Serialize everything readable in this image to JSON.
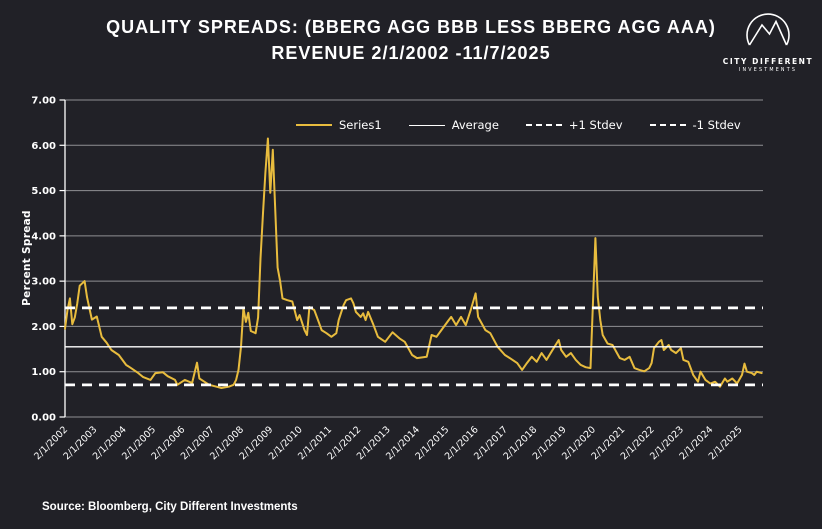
{
  "page": {
    "background": "#212127",
    "accent_yellow": "#E8BC3E",
    "text_color": "#FFFFFF"
  },
  "header": {
    "title_line1": "QUALITY SPREADS: (BBERG AGG BBB LESS BBERG AGG AAA)",
    "title_line2": "REVENUE 2/1/2002 -11/7/2025"
  },
  "logo": {
    "line1": "CITY DIFFERENT",
    "line2": "INVESTMENTS"
  },
  "footer": {
    "source": "Source: Bloomberg, City Different Investments"
  },
  "chart_data": {
    "type": "line",
    "title": "Quality spread BBB less AAA over time",
    "xlabel": "",
    "ylabel": "Percent Spread",
    "ylim": [
      0,
      7
    ],
    "grid": true,
    "legend_position": "top-center",
    "y_tick_labels": [
      "0.00",
      "1.00",
      "2.00",
      "3.00",
      "4.00",
      "5.00",
      "6.00",
      "7.00"
    ],
    "x_tick_labels": [
      "2/1/2002",
      "2/1/2003",
      "2/1/2004",
      "2/1/2005",
      "2/1/2006",
      "2/1/2007",
      "2/1/2008",
      "2/1/2009",
      "2/1/2010",
      "2/1/2011",
      "2/1/2012",
      "2/1/2013",
      "2/1/2014",
      "2/1/2015",
      "2/1/2016",
      "2/1/2017",
      "2/1/2018",
      "2/1/2019",
      "2/1/2020",
      "2/1/2021",
      "2/1/2022",
      "2/1/2023",
      "2/1/2024",
      "2/1/2025"
    ],
    "legend": [
      {
        "name": "Series1",
        "color": "#E8BC3E",
        "style": "solid"
      },
      {
        "name": "Average",
        "color": "#FFFFFF",
        "style": "solid"
      },
      {
        "name": "+1 Stdev",
        "color": "#FFFFFF",
        "style": "dashed"
      },
      {
        "name": "-1 Stdev",
        "color": "#FFFFFF",
        "style": "dashed"
      }
    ],
    "average": 1.55,
    "plus1_stdev": 2.41,
    "minus1_stdev": 0.71,
    "series": [
      {
        "name": "Series1",
        "color": "#E8BC3E",
        "points": [
          [
            "2002-02",
            1.95
          ],
          [
            "2002-03",
            2.35
          ],
          [
            "2002-04",
            2.62
          ],
          [
            "2002-05",
            2.05
          ],
          [
            "2002-06",
            2.2
          ],
          [
            "2002-07",
            2.5
          ],
          [
            "2002-08",
            2.9
          ],
          [
            "2002-10",
            3.0
          ],
          [
            "2002-11",
            2.65
          ],
          [
            "2002-12",
            2.4
          ],
          [
            "2003-01",
            2.15
          ],
          [
            "2003-03",
            2.22
          ],
          [
            "2003-05",
            1.77
          ],
          [
            "2003-07",
            1.64
          ],
          [
            "2003-09",
            1.48
          ],
          [
            "2003-12",
            1.37
          ],
          [
            "2004-03",
            1.15
          ],
          [
            "2004-05",
            1.08
          ],
          [
            "2004-08",
            0.97
          ],
          [
            "2004-10",
            0.88
          ],
          [
            "2005-01",
            0.82
          ],
          [
            "2005-03",
            0.97
          ],
          [
            "2005-06",
            0.99
          ],
          [
            "2005-08",
            0.9
          ],
          [
            "2005-11",
            0.82
          ],
          [
            "2005-12",
            0.71
          ],
          [
            "2006-03",
            0.82
          ],
          [
            "2006-06",
            0.75
          ],
          [
            "2006-08",
            1.2
          ],
          [
            "2006-09",
            0.85
          ],
          [
            "2006-11",
            0.78
          ],
          [
            "2007-01",
            0.71
          ],
          [
            "2007-04",
            0.67
          ],
          [
            "2007-06",
            0.64
          ],
          [
            "2007-09",
            0.67
          ],
          [
            "2007-11",
            0.71
          ],
          [
            "2007-12",
            0.82
          ],
          [
            "2008-01",
            1.04
          ],
          [
            "2008-02",
            1.55
          ],
          [
            "2008-03",
            2.4
          ],
          [
            "2008-04",
            2.1
          ],
          [
            "2008-05",
            2.3
          ],
          [
            "2008-06",
            1.9
          ],
          [
            "2008-08",
            1.85
          ],
          [
            "2008-09",
            2.2
          ],
          [
            "2008-10",
            3.5
          ],
          [
            "2008-11",
            4.5
          ],
          [
            "2008-12",
            5.4
          ],
          [
            "2009-01",
            6.15
          ],
          [
            "2009-02",
            4.95
          ],
          [
            "2009-03",
            5.9
          ],
          [
            "2009-04",
            4.6
          ],
          [
            "2009-05",
            3.3
          ],
          [
            "2009-06",
            3.0
          ],
          [
            "2009-07",
            2.62
          ],
          [
            "2009-09",
            2.58
          ],
          [
            "2009-11",
            2.55
          ],
          [
            "2010-01",
            2.14
          ],
          [
            "2010-02",
            2.25
          ],
          [
            "2010-04",
            1.92
          ],
          [
            "2010-05",
            1.81
          ],
          [
            "2010-06",
            2.43
          ],
          [
            "2010-08",
            2.36
          ],
          [
            "2010-10",
            2.07
          ],
          [
            "2010-11",
            1.92
          ],
          [
            "2011-01",
            1.85
          ],
          [
            "2011-03",
            1.77
          ],
          [
            "2011-05",
            1.85
          ],
          [
            "2011-06",
            2.14
          ],
          [
            "2011-08",
            2.47
          ],
          [
            "2011-09",
            2.58
          ],
          [
            "2011-11",
            2.62
          ],
          [
            "2011-12",
            2.51
          ],
          [
            "2012-01",
            2.32
          ],
          [
            "2012-03",
            2.21
          ],
          [
            "2012-04",
            2.29
          ],
          [
            "2012-05",
            2.14
          ],
          [
            "2012-06",
            2.32
          ],
          [
            "2012-08",
            2.06
          ],
          [
            "2012-10",
            1.77
          ],
          [
            "2013-01",
            1.66
          ],
          [
            "2013-04",
            1.87
          ],
          [
            "2013-07",
            1.73
          ],
          [
            "2013-09",
            1.66
          ],
          [
            "2013-12",
            1.37
          ],
          [
            "2014-02",
            1.3
          ],
          [
            "2014-06",
            1.33
          ],
          [
            "2014-08",
            1.81
          ],
          [
            "2014-10",
            1.77
          ],
          [
            "2014-12",
            1.92
          ],
          [
            "2015-03",
            2.14
          ],
          [
            "2015-04",
            2.21
          ],
          [
            "2015-06",
            2.03
          ],
          [
            "2015-08",
            2.21
          ],
          [
            "2015-10",
            2.03
          ],
          [
            "2015-12",
            2.36
          ],
          [
            "2016-02",
            2.73
          ],
          [
            "2016-03",
            2.21
          ],
          [
            "2016-06",
            1.92
          ],
          [
            "2016-08",
            1.85
          ],
          [
            "2016-11",
            1.55
          ],
          [
            "2017-02",
            1.37
          ],
          [
            "2017-04",
            1.3
          ],
          [
            "2017-07",
            1.19
          ],
          [
            "2017-09",
            1.04
          ],
          [
            "2017-11",
            1.19
          ],
          [
            "2018-01",
            1.33
          ],
          [
            "2018-03",
            1.22
          ],
          [
            "2018-05",
            1.41
          ],
          [
            "2018-07",
            1.26
          ],
          [
            "2018-09",
            1.44
          ],
          [
            "2018-12",
            1.7
          ],
          [
            "2019-01",
            1.48
          ],
          [
            "2019-03",
            1.33
          ],
          [
            "2019-05",
            1.41
          ],
          [
            "2019-07",
            1.26
          ],
          [
            "2019-09",
            1.15
          ],
          [
            "2019-11",
            1.1
          ],
          [
            "2020-01",
            1.08
          ],
          [
            "2020-03",
            3.95
          ],
          [
            "2020-04",
            2.65
          ],
          [
            "2020-05",
            2.14
          ],
          [
            "2020-06",
            1.81
          ],
          [
            "2020-08",
            1.62
          ],
          [
            "2020-10",
            1.59
          ],
          [
            "2021-01",
            1.3
          ],
          [
            "2021-03",
            1.26
          ],
          [
            "2021-05",
            1.33
          ],
          [
            "2021-07",
            1.08
          ],
          [
            "2021-09",
            1.04
          ],
          [
            "2021-11",
            1.01
          ],
          [
            "2022-01",
            1.08
          ],
          [
            "2022-02",
            1.19
          ],
          [
            "2022-03",
            1.52
          ],
          [
            "2022-05",
            1.66
          ],
          [
            "2022-06",
            1.7
          ],
          [
            "2022-07",
            1.48
          ],
          [
            "2022-09",
            1.59
          ],
          [
            "2022-10",
            1.48
          ],
          [
            "2022-12",
            1.41
          ],
          [
            "2023-02",
            1.52
          ],
          [
            "2023-03",
            1.26
          ],
          [
            "2023-05",
            1.22
          ],
          [
            "2023-07",
            0.93
          ],
          [
            "2023-09",
            0.78
          ],
          [
            "2023-10",
            1.0
          ],
          [
            "2023-12",
            0.82
          ],
          [
            "2024-02",
            0.74
          ],
          [
            "2024-04",
            0.78
          ],
          [
            "2024-06",
            0.67
          ],
          [
            "2024-08",
            0.85
          ],
          [
            "2024-09",
            0.78
          ],
          [
            "2024-11",
            0.85
          ],
          [
            "2025-01",
            0.74
          ],
          [
            "2025-03",
            0.93
          ],
          [
            "2025-04",
            1.18
          ],
          [
            "2025-05",
            1.0
          ],
          [
            "2025-07",
            0.97
          ],
          [
            "2025-08",
            0.93
          ],
          [
            "2025-09",
            1.0
          ],
          [
            "2025-11",
            0.97
          ]
        ]
      }
    ]
  }
}
